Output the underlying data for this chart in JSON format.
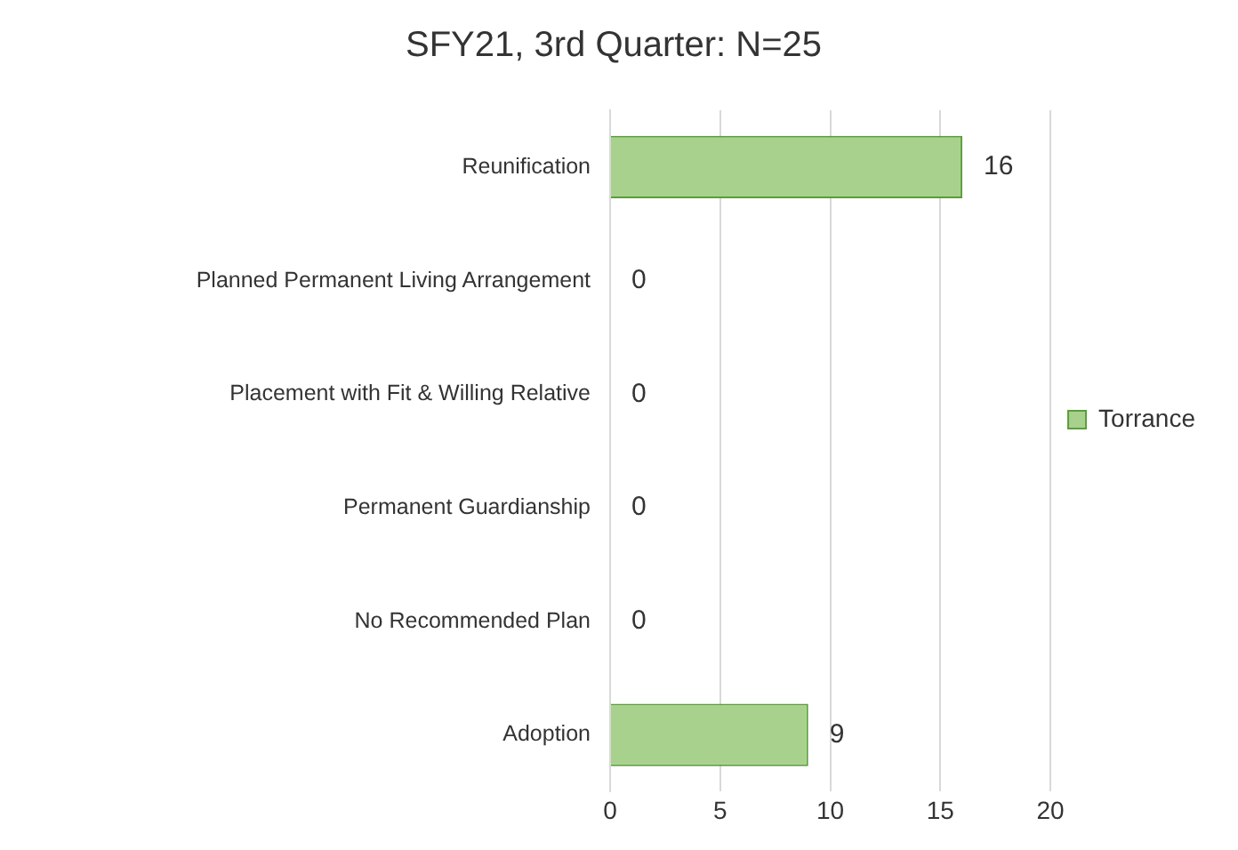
{
  "chart_data": {
    "type": "bar",
    "orientation": "horizontal",
    "title": "SFY21, 3rd Quarter: N=25",
    "categories": [
      "Reunification",
      "Planned Permanent Living Arrangement",
      "Placement with Fit & Willing Relative",
      "Permanent Guardianship",
      "No Recommended Plan",
      "Adoption"
    ],
    "series": [
      {
        "name": "Torrance",
        "color": "#a9d18e",
        "values": [
          16,
          0,
          0,
          0,
          0,
          9
        ]
      }
    ],
    "xlim": [
      0,
      20
    ],
    "xticks": [
      0,
      5,
      10,
      15,
      20
    ],
    "grid": "x",
    "legend": "right",
    "data_labels": true
  }
}
